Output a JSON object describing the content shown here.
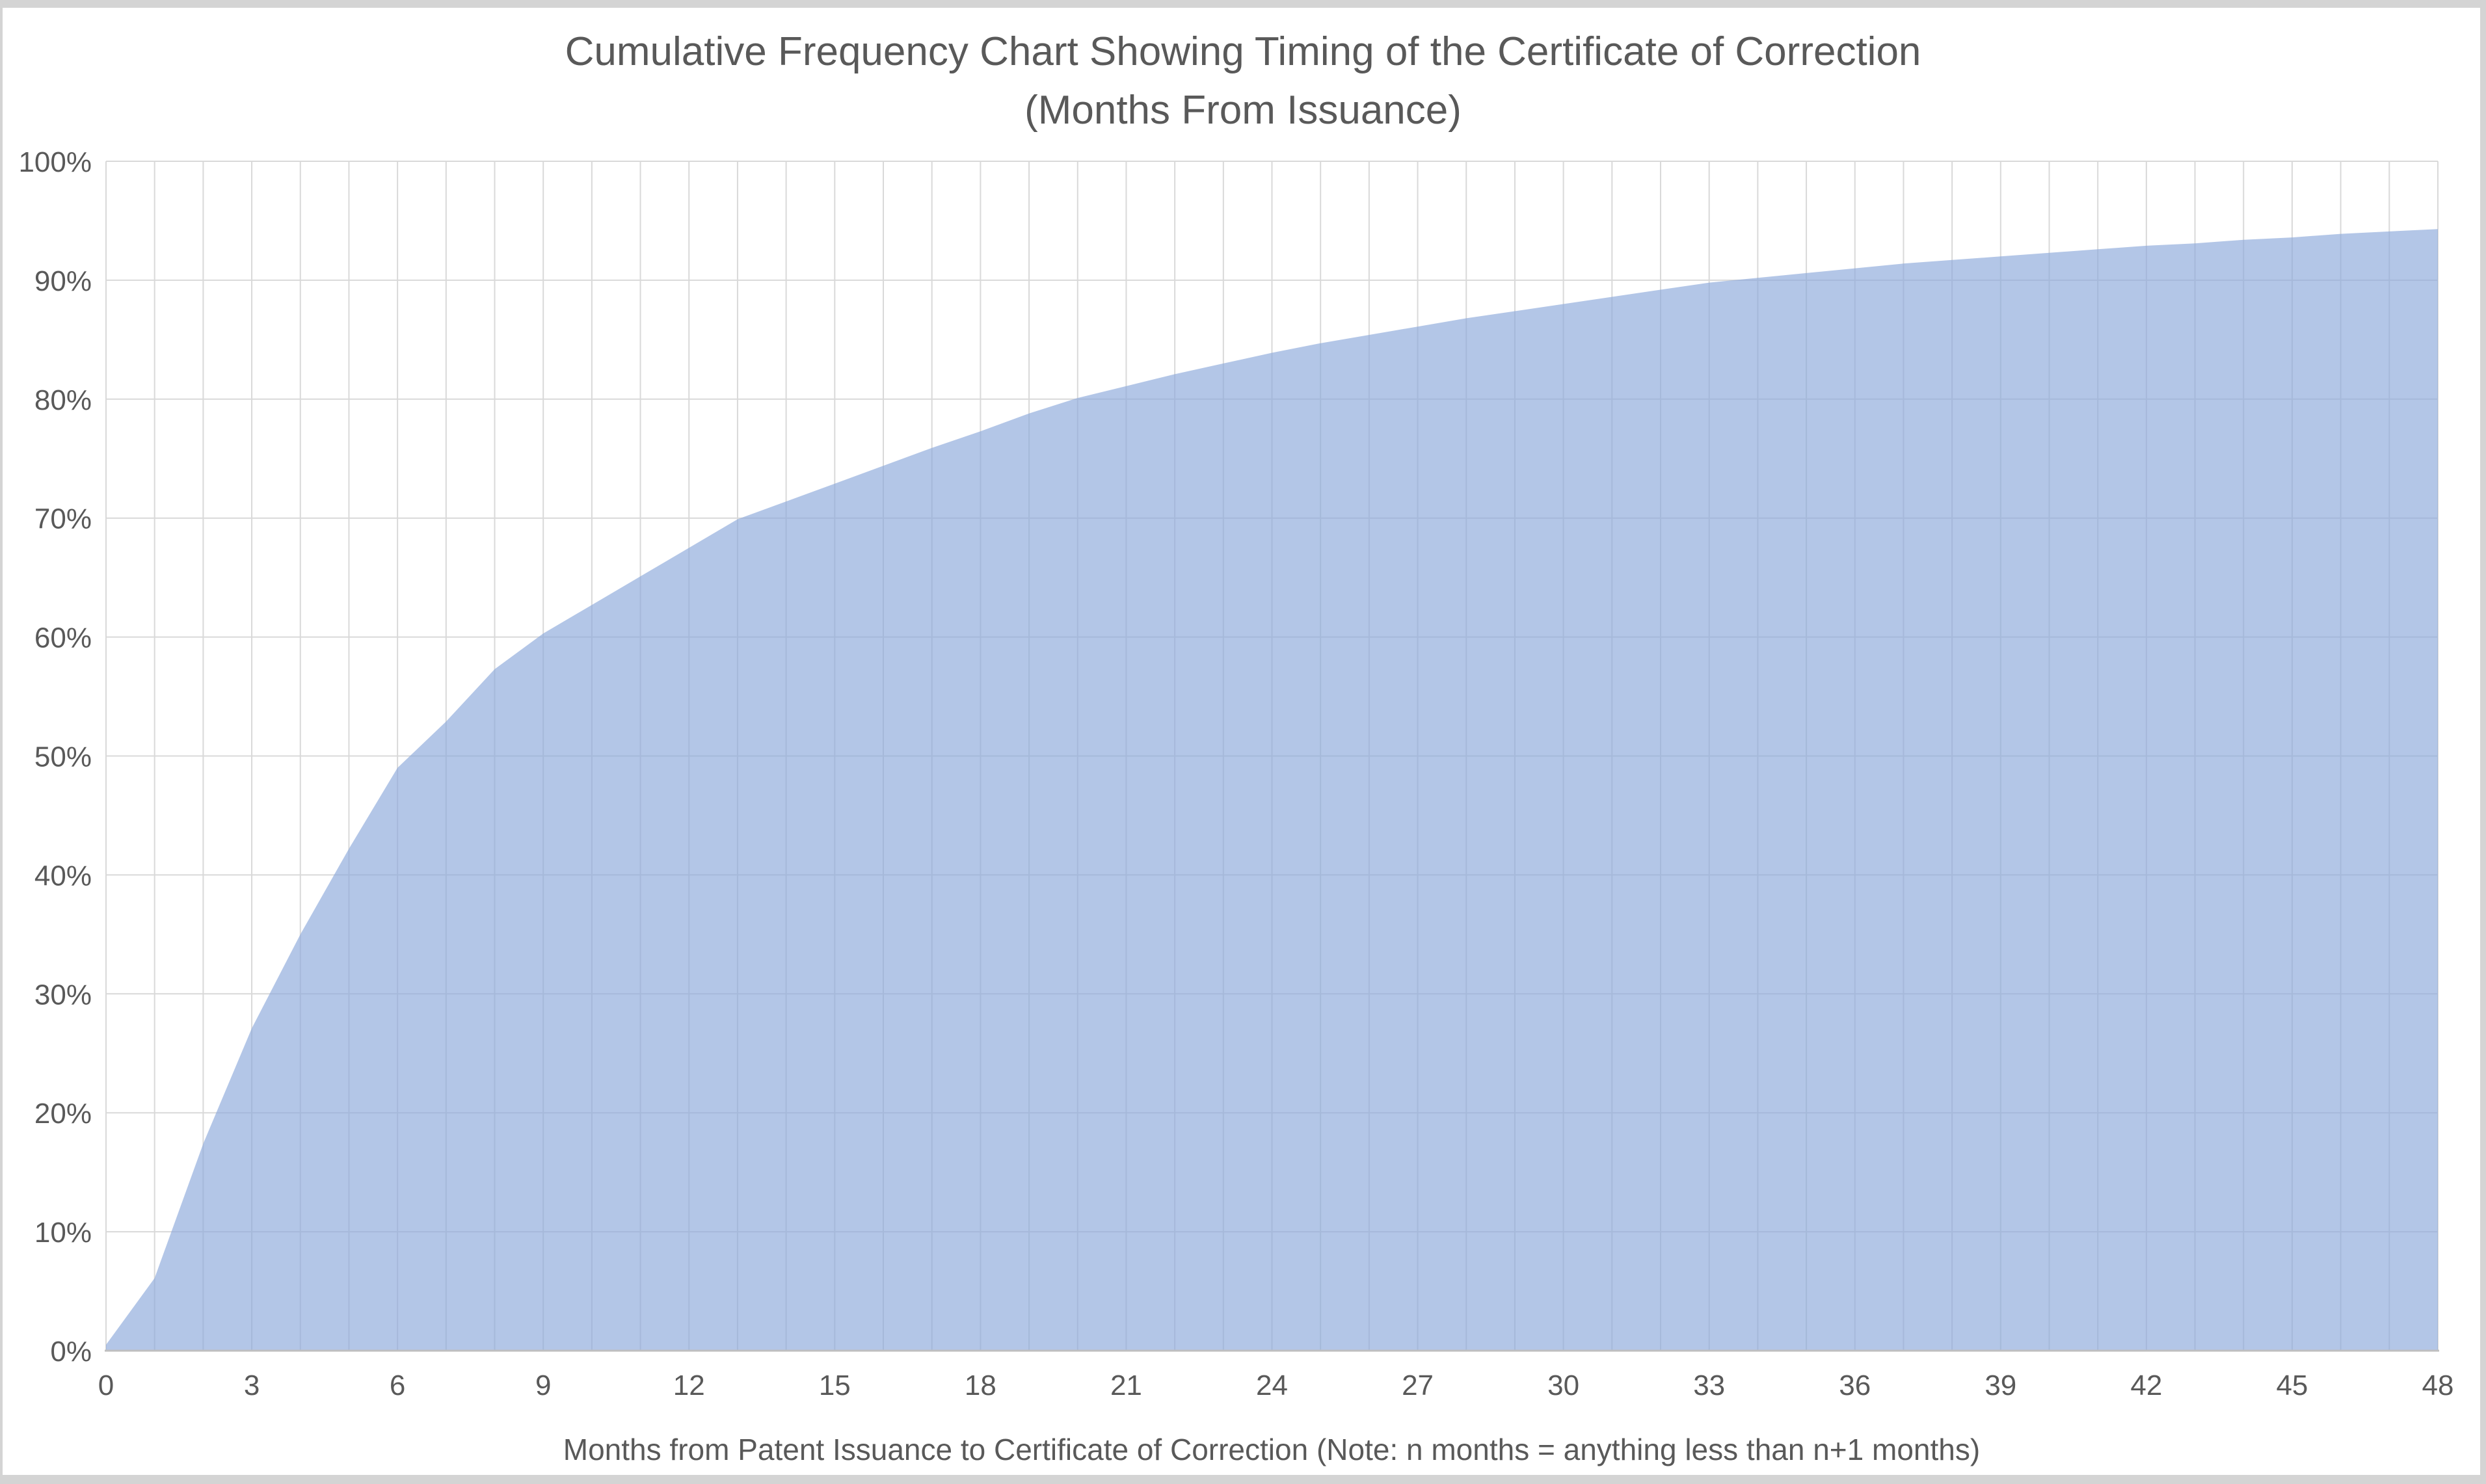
{
  "page": {
    "background": "#ffffff",
    "chrome_color": "#d4d4d4"
  },
  "chart_data": {
    "type": "area",
    "title": "Cumulative Frequency Chart Showing Timing of the Certificate of Correction",
    "subtitle": "(Months From Issuance)",
    "xlabel": "Months from Patent Issuance to Certificate of Correction (Note: n months = anything less than n+1 months)",
    "ylabel": "",
    "xlim": [
      0,
      48
    ],
    "ylim": [
      0,
      100
    ],
    "x_tick_step_gridline": 1,
    "x_tick_labels": [
      "0",
      "3",
      "6",
      "9",
      "12",
      "15",
      "18",
      "21",
      "24",
      "27",
      "30",
      "33",
      "36",
      "39",
      "42",
      "45",
      "48"
    ],
    "x_tick_values": [
      0,
      3,
      6,
      9,
      12,
      15,
      18,
      21,
      24,
      27,
      30,
      33,
      36,
      39,
      42,
      45,
      48
    ],
    "y_tick_labels": [
      "0%",
      "10%",
      "20%",
      "30%",
      "40%",
      "50%",
      "60%",
      "70%",
      "80%",
      "90%",
      "100%"
    ],
    "y_tick_values": [
      0,
      10,
      20,
      30,
      40,
      50,
      60,
      70,
      80,
      90,
      100
    ],
    "grid": true,
    "legend": false,
    "series": [
      {
        "name": "Cumulative frequency of Certificate of Correction",
        "x": [
          0,
          1,
          2,
          3,
          4,
          5,
          6,
          7,
          8,
          9,
          10,
          11,
          12,
          13,
          14,
          15,
          16,
          17,
          18,
          19,
          20,
          21,
          22,
          23,
          24,
          25,
          26,
          27,
          28,
          29,
          30,
          31,
          32,
          33,
          34,
          35,
          36,
          37,
          38,
          39,
          40,
          41,
          42,
          43,
          44,
          45,
          46,
          47,
          48
        ],
        "values": [
          0.5,
          6.1,
          17.4,
          27.1,
          35.0,
          42.2,
          49.0,
          52.9,
          57.3,
          60.3,
          62.7,
          65.1,
          67.5,
          69.9,
          71.4,
          72.9,
          74.4,
          75.9,
          77.3,
          78.8,
          80.1,
          81.1,
          82.1,
          83.0,
          83.9,
          84.7,
          85.4,
          86.1,
          86.8,
          87.4,
          88.0,
          88.6,
          89.2,
          89.8,
          90.2,
          90.6,
          91.0,
          91.4,
          91.7,
          92.0,
          92.3,
          92.6,
          92.9,
          93.1,
          93.4,
          93.6,
          93.9,
          94.1,
          94.3
        ]
      }
    ],
    "colors": {
      "fill": "#b4c7e7",
      "fill_rgba": "rgba(140,169,218,0.66)",
      "gridline": "#d9d9d9",
      "axis_line": "#bfbfbf",
      "text": "#595959"
    }
  }
}
